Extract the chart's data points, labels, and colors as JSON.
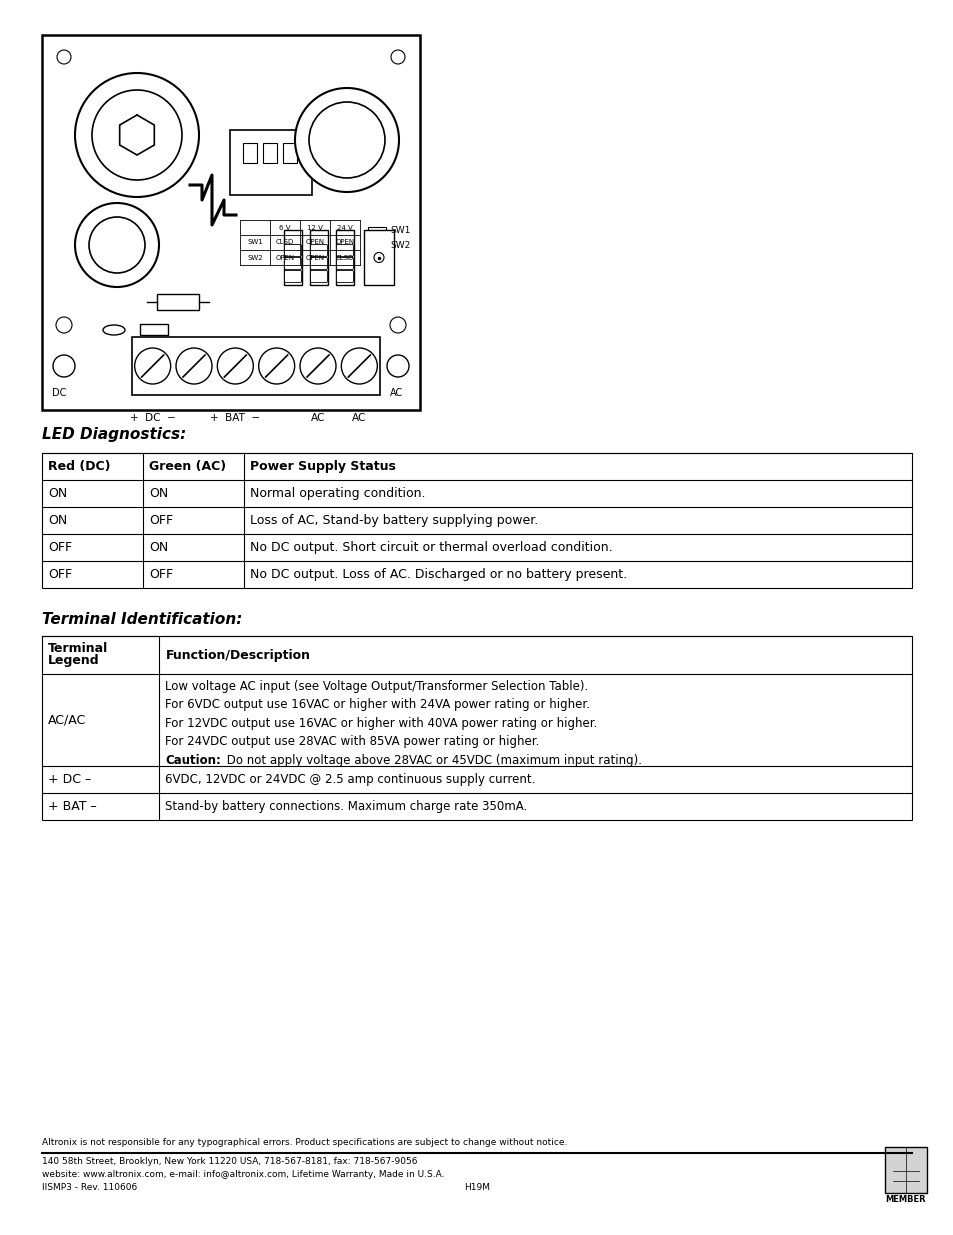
{
  "page_bg": "#ffffff",
  "led_section_title": "LED Diagnostics:",
  "terminal_section_title": "Terminal Identification:",
  "led_headers": [
    "Red (DC)",
    "Green (AC)",
    "Power Supply Status"
  ],
  "led_rows": [
    [
      "ON",
      "ON",
      "Normal operating condition."
    ],
    [
      "ON",
      "OFF",
      "Loss of AC, Stand-by battery supplying power."
    ],
    [
      "OFF",
      "ON",
      "No DC output. Short circuit or thermal overload condition."
    ],
    [
      "OFF",
      "OFF",
      "No DC output. Loss of AC. Discharged or no battery present."
    ]
  ],
  "terminal_headers": [
    "Terminal\nLegend",
    "Function/Description"
  ],
  "terminal_rows": [
    [
      "AC/AC",
      "Low voltage AC input (see Voltage Output/Transformer Selection Table).\nFor 6VDC output use 16VAC or higher with 24VA power rating or higher.\nFor 12VDC output use 16VAC or higher with 40VA power rating or higher.\nFor 24VDC output use 28VAC with 85VA power rating or higher.\nCaution: Do not apply voltage above 28VAC or 45VDC (maximum input rating)."
    ],
    [
      "+ DC –",
      "6VDC, 12VDC or 24VDC @ 2.5 amp continuous supply current."
    ],
    [
      "+ BAT –",
      "Stand-by battery connections. Maximum charge rate 350mA."
    ]
  ],
  "footer_disclaimer": "Altronix is not responsible for any typographical errors. Product specifications are subject to change without notice.",
  "footer_line2": "140 58th Street, Brooklyn, New York 11220 USA, 718-567-8181, fax: 718-567-9056",
  "footer_line3": "website: www.altronix.com, e-mail: info@altronix.com, Lifetime Warranty, Made in U.S.A.",
  "footer_line4": "IISMP3 - Rev. 110606",
  "footer_center": "H19M",
  "footer_right": "MEMBER"
}
